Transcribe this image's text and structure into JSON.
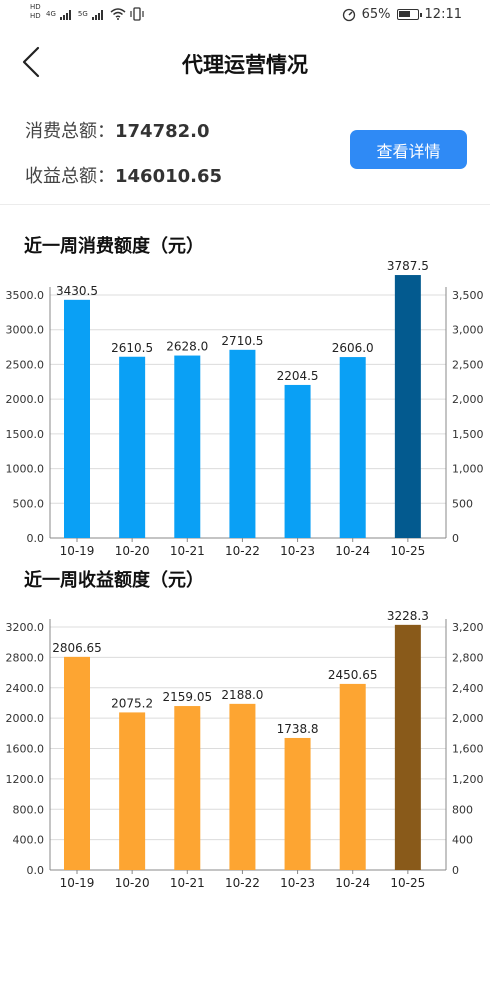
{
  "status": {
    "network_hd1": "HD",
    "network_4g": "4G",
    "network_hd2": "HD",
    "network_5g": "5G",
    "battery_percent": "65%",
    "battery_level": 0.65,
    "time": "12:11"
  },
  "nav": {
    "title": "代理运营情况"
  },
  "summary": {
    "consume_label": "消费总额：",
    "consume_value": "174782.0",
    "income_label": "收益总额：",
    "income_value": "146010.65",
    "detail_button": "查看详情"
  },
  "colors": {
    "consume_bar": "#0aa0f5",
    "consume_bar_highlight": "#035a8f",
    "income_bar": "#fda532",
    "income_bar_highlight": "#895a1a",
    "button": "#2f8af5"
  },
  "chart_data": [
    {
      "type": "bar",
      "title": "近一周消费额度（元）",
      "categories": [
        "10-19",
        "10-20",
        "10-21",
        "10-22",
        "10-23",
        "10-24",
        "10-25"
      ],
      "values": [
        3430.5,
        2610.5,
        2628.0,
        2710.5,
        2204.5,
        2606.0,
        3787.5
      ],
      "value_labels": [
        "3430.5",
        "2610.5",
        "2628.0",
        "2710.5",
        "2204.5",
        "2606.0",
        "3787.5"
      ],
      "highlight_index": 6,
      "ylim": [
        0,
        3500
      ],
      "left_ticks": [
        "0.0",
        "500.0",
        "1000.0",
        "1500.0",
        "2000.0",
        "2500.0",
        "3000.0",
        "3500.0"
      ],
      "right_ticks": [
        "0",
        "500",
        "1,000",
        "1,500",
        "2,000",
        "2,500",
        "3,000",
        "3,500"
      ],
      "grid": true
    },
    {
      "type": "bar",
      "title": "近一周收益额度（元）",
      "categories": [
        "10-19",
        "10-20",
        "10-21",
        "10-22",
        "10-23",
        "10-24",
        "10-25"
      ],
      "values": [
        2806.65,
        2075.2,
        2159.05,
        2188.0,
        1738.8,
        2450.65,
        3228.3
      ],
      "value_labels": [
        "2806.65",
        "2075.2",
        "2159.05",
        "2188.0",
        "1738.8",
        "2450.65",
        "3228.3"
      ],
      "highlight_index": 6,
      "ylim": [
        0,
        3200
      ],
      "left_ticks": [
        "0.0",
        "400.0",
        "800.0",
        "1200.0",
        "1600.0",
        "2000.0",
        "2400.0",
        "2800.0",
        "3200.0"
      ],
      "right_ticks": [
        "0",
        "400",
        "800",
        "1,200",
        "1,600",
        "2,000",
        "2,400",
        "2,800",
        "3,200"
      ],
      "grid": true
    }
  ]
}
